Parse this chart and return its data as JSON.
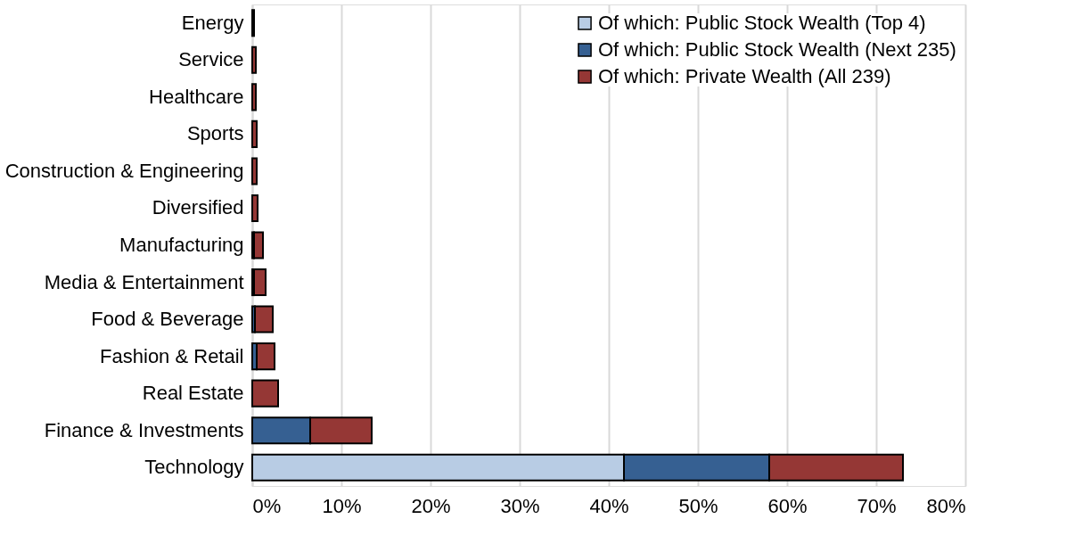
{
  "chart_data": {
    "type": "bar",
    "orientation": "horizontal",
    "stacked": true,
    "categories": [
      "Energy",
      "Service",
      "Healthcare",
      "Sports",
      "Construction & Engineering",
      "Diversified",
      "Manufacturing",
      "Media & Entertainment",
      "Food & Beverage",
      "Fashion & Retail",
      "Real Estate",
      "Finance & Investments",
      "Technology"
    ],
    "series": [
      {
        "name": "Of which: Public Stock Wealth (Top 4)",
        "color": "#b8cce4",
        "values": [
          null,
          null,
          null,
          null,
          null,
          null,
          null,
          null,
          null,
          null,
          null,
          null,
          41.7
        ]
      },
      {
        "name": "Of which: Public Stock Wealth (Next 235)",
        "color": "#366092",
        "values": [
          null,
          null,
          null,
          null,
          null,
          null,
          0.2,
          0.2,
          0.3,
          0.5,
          null,
          6.5,
          16.3
        ]
      },
      {
        "name": "Of which: Private Wealth (All 239)",
        "color": "#953735",
        "values": [
          0.2,
          0.4,
          0.4,
          0.5,
          0.5,
          0.6,
          1.0,
          1.3,
          2.0,
          2.0,
          2.9,
          6.9,
          15.0
        ]
      }
    ],
    "xlim": [
      0,
      80
    ],
    "xticks": [
      {
        "value": 0,
        "label": "0%"
      },
      {
        "value": 10,
        "label": "10%"
      },
      {
        "value": 20,
        "label": "20%"
      },
      {
        "value": 30,
        "label": "30%"
      },
      {
        "value": 40,
        "label": "40%"
      },
      {
        "value": 50,
        "label": "50%"
      },
      {
        "value": 60,
        "label": "60%"
      },
      {
        "value": 70,
        "label": "70%"
      },
      {
        "value": 80,
        "label": "80%"
      }
    ],
    "grid": "x",
    "legend": "top right"
  }
}
